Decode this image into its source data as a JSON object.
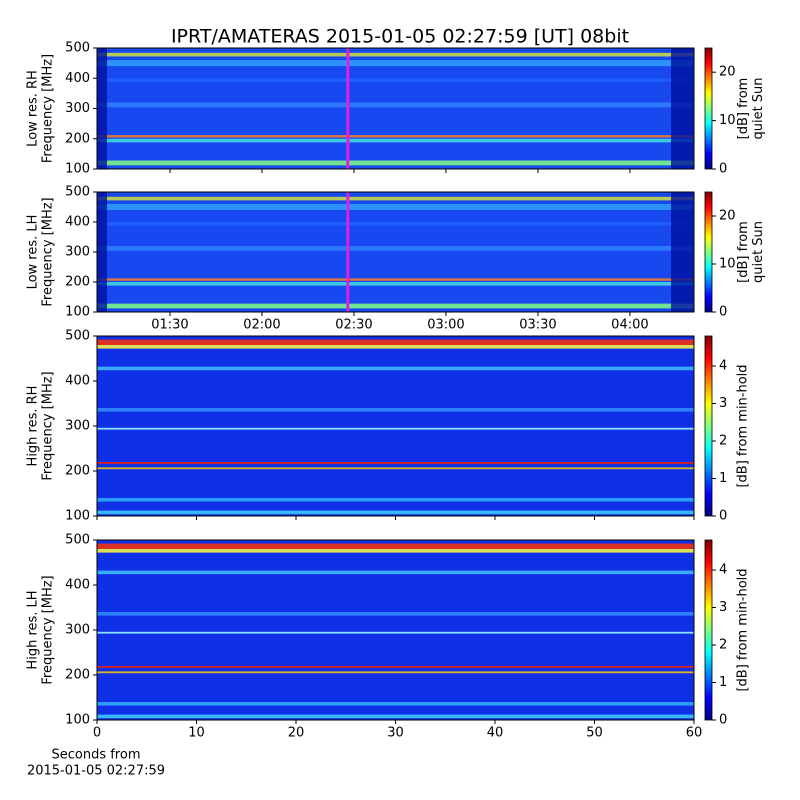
{
  "title": "IPRT/AMATERAS 2015-01-05 02:27:59 [UT]   08bit",
  "chart_data": [
    {
      "type": "heatmap",
      "ylabel": [
        "Low res. RH",
        "Frequency [MHz]"
      ],
      "xlim": [
        66.2,
        260.9
      ],
      "ylim": [
        100,
        500
      ],
      "yticks": [
        100,
        200,
        300,
        400,
        500
      ],
      "marker_x": 148,
      "marker_color": "#e020e0",
      "colorbar": {
        "label": [
          "[dB] from",
          "quiet Sun"
        ],
        "lim": [
          0,
          25
        ],
        "ticks": [
          0,
          10,
          20
        ]
      }
    },
    {
      "type": "heatmap",
      "ylabel": [
        "Low res. LH",
        "Frequency [MHz]"
      ],
      "xlim": [
        66.2,
        260.9
      ],
      "ylim": [
        100,
        500
      ],
      "yticks": [
        100,
        200,
        300,
        400,
        500
      ],
      "marker_x": 148,
      "marker_color": "#e020e0",
      "xticks": [
        {
          "value": 90,
          "label": "01:30"
        },
        {
          "value": 120,
          "label": "02:00"
        },
        {
          "value": 150,
          "label": "02:30"
        },
        {
          "value": 180,
          "label": "03:00"
        },
        {
          "value": 210,
          "label": "03:30"
        },
        {
          "value": 240,
          "label": "04:00"
        }
      ],
      "colorbar": {
        "label": [
          "[dB] from",
          "quiet Sun"
        ],
        "lim": [
          0,
          25
        ],
        "ticks": [
          0,
          10,
          20
        ]
      }
    },
    {
      "type": "heatmap",
      "ylabel": [
        "High res. RH",
        "Frequency [MHz]"
      ],
      "xlim": [
        0,
        60
      ],
      "ylim": [
        100,
        500
      ],
      "yticks": [
        100,
        200,
        300,
        400,
        500
      ],
      "colorbar": {
        "label": [
          "[dB] from min-hold"
        ],
        "lim": [
          0,
          4.8
        ],
        "ticks": [
          0,
          1,
          2,
          3,
          4
        ]
      }
    },
    {
      "type": "heatmap",
      "ylabel": [
        "High res. LH",
        "Frequency [MHz]"
      ],
      "xlim": [
        0,
        60
      ],
      "ylim": [
        100,
        500
      ],
      "yticks": [
        100,
        200,
        300,
        400,
        500
      ],
      "xticks": [
        0,
        10,
        20,
        30,
        40,
        50,
        60
      ],
      "xlabel": [
        "Seconds from",
        "2015-01-05 02:27:59"
      ],
      "colorbar": {
        "label": [
          "[dB] from min-hold"
        ],
        "lim": [
          0,
          4.8
        ],
        "ticks": [
          0,
          1,
          2,
          3,
          4
        ]
      }
    }
  ]
}
